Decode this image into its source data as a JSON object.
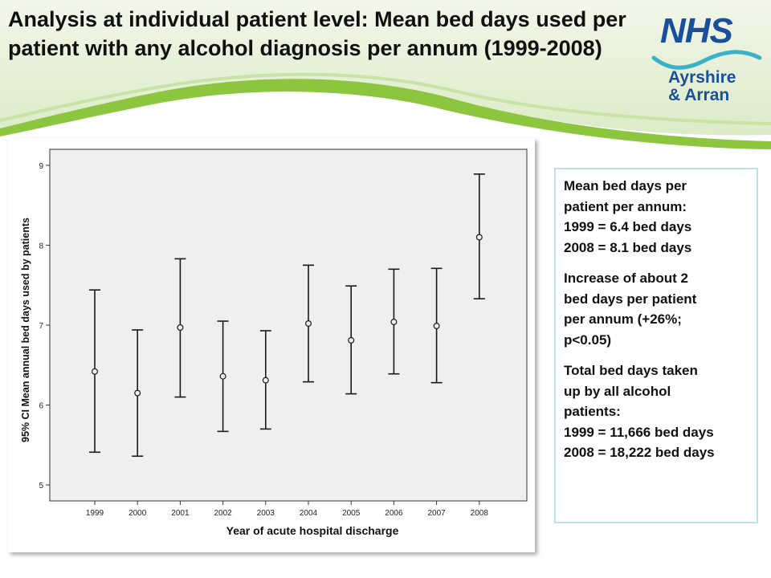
{
  "slide": {
    "title": "Analysis at individual patient level: Mean bed days used per patient with any alcohol diagnosis per annum (1999-2008)"
  },
  "logo": {
    "name": "NHS",
    "line1": "Ayrshire",
    "line2": "& Arran"
  },
  "info_box": {
    "block1": [
      "Mean bed days per",
      "patient per annum:",
      "1999 = 6.4 bed days",
      "2008 = 8.1 bed days"
    ],
    "block2": [
      "Increase of about 2",
      "bed days per patient",
      "per annum (+26%;",
      "p<0.05)"
    ],
    "block3": [
      "Total bed days taken",
      "up by all alcohol",
      "patients:",
      "1999 = 11,666 bed days",
      "2008 = 18,222 bed days"
    ]
  },
  "chart_data": {
    "type": "errorbar",
    "title": "",
    "xlabel": "Year of acute hospital discharge",
    "ylabel": "95% CI Mean annual bed days used by patients",
    "ylim": [
      4.8,
      9.2
    ],
    "yticks": [
      5,
      6,
      7,
      8,
      9
    ],
    "grid": false,
    "categories": [
      "1999",
      "2000",
      "2001",
      "2002",
      "2003",
      "2004",
      "2005",
      "2006",
      "2007",
      "2008"
    ],
    "mean": [
      6.42,
      6.15,
      6.97,
      6.36,
      6.31,
      7.02,
      6.81,
      7.04,
      6.99,
      8.1
    ],
    "lower": [
      5.41,
      5.36,
      6.1,
      5.67,
      5.7,
      6.29,
      6.14,
      6.39,
      6.28,
      7.33
    ],
    "upper": [
      7.44,
      6.94,
      7.83,
      7.05,
      6.93,
      7.75,
      7.49,
      7.7,
      7.71,
      8.89
    ],
    "colors": {
      "plot_bg": "#efefef",
      "marks": "#1a1a1a"
    }
  }
}
